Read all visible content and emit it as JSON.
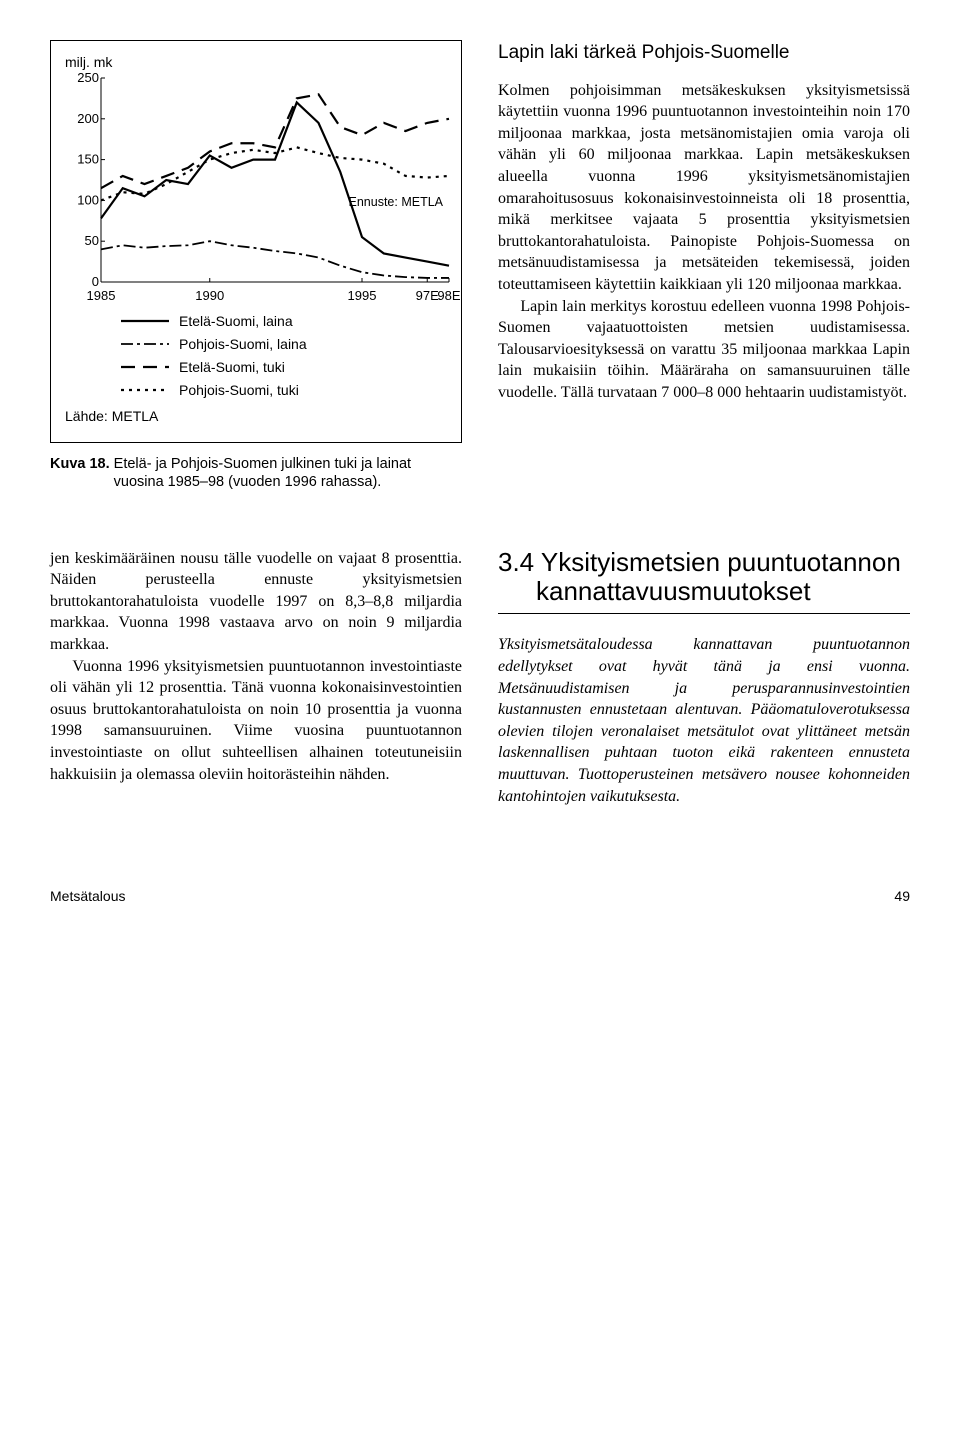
{
  "chart": {
    "type": "line",
    "y_title": "milj. mk",
    "x_ticks": [
      "1985",
      "1990",
      "1995",
      "97E",
      "98E"
    ],
    "y_ticks": [
      "0",
      "50",
      "100",
      "150",
      "200",
      "250"
    ],
    "ylim": [
      0,
      250
    ],
    "background": "#ffffff",
    "border_color": "#000000",
    "series": [
      {
        "name": "Etelä-Suomi, laina",
        "stroke": "#000000",
        "stroke_width": 2.2,
        "dash": "none",
        "values": [
          78,
          115,
          105,
          125,
          120,
          155,
          140,
          150,
          150,
          220,
          195,
          135,
          55,
          35,
          30,
          25,
          20
        ]
      },
      {
        "name": "Pohjois-Suomi, laina",
        "stroke": "#000000",
        "stroke_width": 1.8,
        "dash": "12 4 3 4",
        "values": [
          40,
          45,
          42,
          44,
          45,
          50,
          45,
          42,
          38,
          35,
          30,
          20,
          12,
          8,
          6,
          5,
          5
        ]
      },
      {
        "name": "Etelä-Suomi, tuki",
        "stroke": "#000000",
        "stroke_width": 2.2,
        "dash": "14 8",
        "values": [
          115,
          130,
          120,
          130,
          140,
          160,
          170,
          170,
          165,
          225,
          230,
          190,
          180,
          195,
          185,
          195,
          200
        ]
      },
      {
        "name": "Pohjois-Suomi, tuki",
        "stroke": "#000000",
        "stroke_width": 2.2,
        "dash": "3 5",
        "values": [
          100,
          110,
          108,
          120,
          135,
          150,
          158,
          162,
          158,
          165,
          158,
          152,
          150,
          145,
          130,
          128,
          130
        ]
      }
    ],
    "forecast_label": "Ennuste: METLA",
    "source_label": "Lähde: METLA",
    "legend_labels": [
      "Etelä-Suomi, laina",
      "Pohjois-Suomi, laina",
      "Etelä-Suomi, tuki",
      "Pohjois-Suomi, tuki"
    ],
    "caption_label": "Kuva 18.",
    "caption_text": "Etelä- ja Pohjois-Suomen julkinen tuki ja lainat vuosina 1985–98 (vuoden 1996 rahassa)."
  },
  "right": {
    "subheading": "Lapin laki tärkeä Pohjois-Suomelle",
    "para1": "Kolmen pohjoisimman metsäkeskuksen yksityismetsissä käytettiin vuonna 1996 puuntuotannon investointeihin noin 170 miljoonaa markkaa, josta metsänomistajien omia varoja oli vähän yli 60 miljoonaa markkaa. Lapin metsäkeskuksen alueella vuonna 1996 yksityismetsänomistajien omarahoitusosuus kokonaisinvestoinneista oli 18 prosenttia, mikä merkitsee vajaata 5 prosenttia yksityismetsien bruttokantorahatuloista. Painopiste Pohjois-Suomessa on metsänuudistamisessa ja metsäteiden tekemisessä, joiden toteuttamiseen käytettiin kaikkiaan yli 120 miljoonaa markkaa.",
    "para2": "Lapin lain merkitys korostuu edelleen vuonna 1998 Pohjois-Suomen vajaatuottoisten metsien uudistamisessa. Talousarvioesityksessä on varattu 35 miljoonaa markkaa Lapin lain mukaisiin töihin. Määräraha on samansuuruinen tälle vuodelle. Tällä turvataan 7 000–8 000 hehtaarin uudistamistyöt."
  },
  "left_lower": {
    "para1": "jen keskimääräinen nousu tälle vuodelle on vajaat 8 prosenttia. Näiden perusteella ennuste yksityismetsien bruttokantorahatuloista vuodelle 1997 on 8,3–8,8 miljardia markkaa. Vuonna 1998 vastaava arvo on noin 9 miljardia markkaa.",
    "para2": "Vuonna 1996 yksityismetsien puuntuotannon investointiaste oli vähän yli 12 prosenttia. Tänä vuonna kokonaisinvestointien osuus bruttokantorahatuloista on noin 10 prosenttia ja vuonna 1998 samansuuruinen. Viime vuosina puuntuotannon investointiaste on ollut suhteellisen alhainen toteutuneisiin hakkuisiin ja olemassa oleviin hoitorästeihin nähden."
  },
  "right_lower": {
    "section_heading": "3.4 Yksityismetsien puuntuotannon kannattavuusmuutokset",
    "intro": "Yksityismetsätaloudessa kannattavan puuntuotannon edellytykset ovat hyvät tänä ja ensi vuonna. Metsänuudistamisen ja perusparannusinvestointien kustannusten ennustetaan alentuvan. Pääomatuloverotuksessa olevien tilojen veronalaiset metsätulot ovat ylittäneet metsän laskennallisen puhtaan tuoton eikä rakenteen ennusteta muuttuvan. Tuottoperusteinen metsävero nousee kohonneiden kantohintojen vaikutuksesta."
  },
  "footer": {
    "section": "Metsätalous",
    "page": "49"
  }
}
